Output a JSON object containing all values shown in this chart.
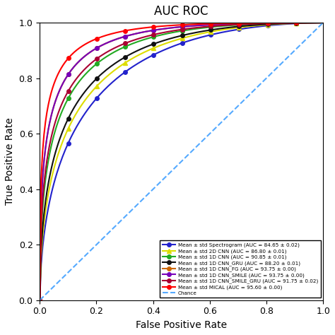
{
  "title": "AUC ROC",
  "xlabel": "False Positive Rate",
  "ylabel": "True Positive Rate",
  "curves": [
    {
      "label": "Mean ± std Spectrogram (AUC = 84.65 ± 0.02)",
      "color": "#2222cc",
      "auc": 0.8465,
      "marker": "o",
      "beta": 0.35
    },
    {
      "label": "Mean ± std 2D CNN (AUC = 86.80 ± 0.01)",
      "color": "#dddd00",
      "auc": 0.868,
      "marker": "^",
      "beta": 0.3
    },
    {
      "label": "Mean ± std 1D CNN (AUC = 90.85 ± 0.01)",
      "color": "#22aa22",
      "auc": 0.9085,
      "marker": "o",
      "beta": 0.2
    },
    {
      "label": "Mean ± std 1D CNN_GRU (AUC = 88.20 ± 0.01)",
      "color": "#111111",
      "auc": 0.882,
      "marker": "o",
      "beta": 0.25
    },
    {
      "label": "Mean ± std 1D CNN_FG (AUC = 93.75 ± 0.00)",
      "color": "#cc6600",
      "auc": 0.9375,
      "marker": "o",
      "beta": 0.13
    },
    {
      "label": "Mean ± std 1D CNN_SMILE (AUC = 93.75 ± 0.00)",
      "color": "#7700bb",
      "auc": 0.9375,
      "marker": "o",
      "beta": 0.12
    },
    {
      "label": "Mean ± std 1D CNN_SMILE_GRU (AUC = 91.75 ± 0.02)",
      "color": "#aa0033",
      "auc": 0.9175,
      "marker": "o",
      "beta": 0.16
    },
    {
      "label": "Mean ± std MICAL (AUC = 95.60 ± 0.00)",
      "color": "#ff0000",
      "auc": 0.956,
      "marker": "o",
      "beta": 0.08
    }
  ],
  "chance_label": "Chance",
  "chance_color": "#55aaff",
  "xlim": [
    0.0,
    1.0
  ],
  "ylim": [
    0.0,
    1.0
  ],
  "xticks": [
    0.0,
    0.2,
    0.4,
    0.6,
    0.8,
    1.0
  ],
  "yticks": [
    0.0,
    0.2,
    0.4,
    0.6,
    0.8,
    1.0
  ],
  "n_points": 200,
  "marker_count": 10
}
